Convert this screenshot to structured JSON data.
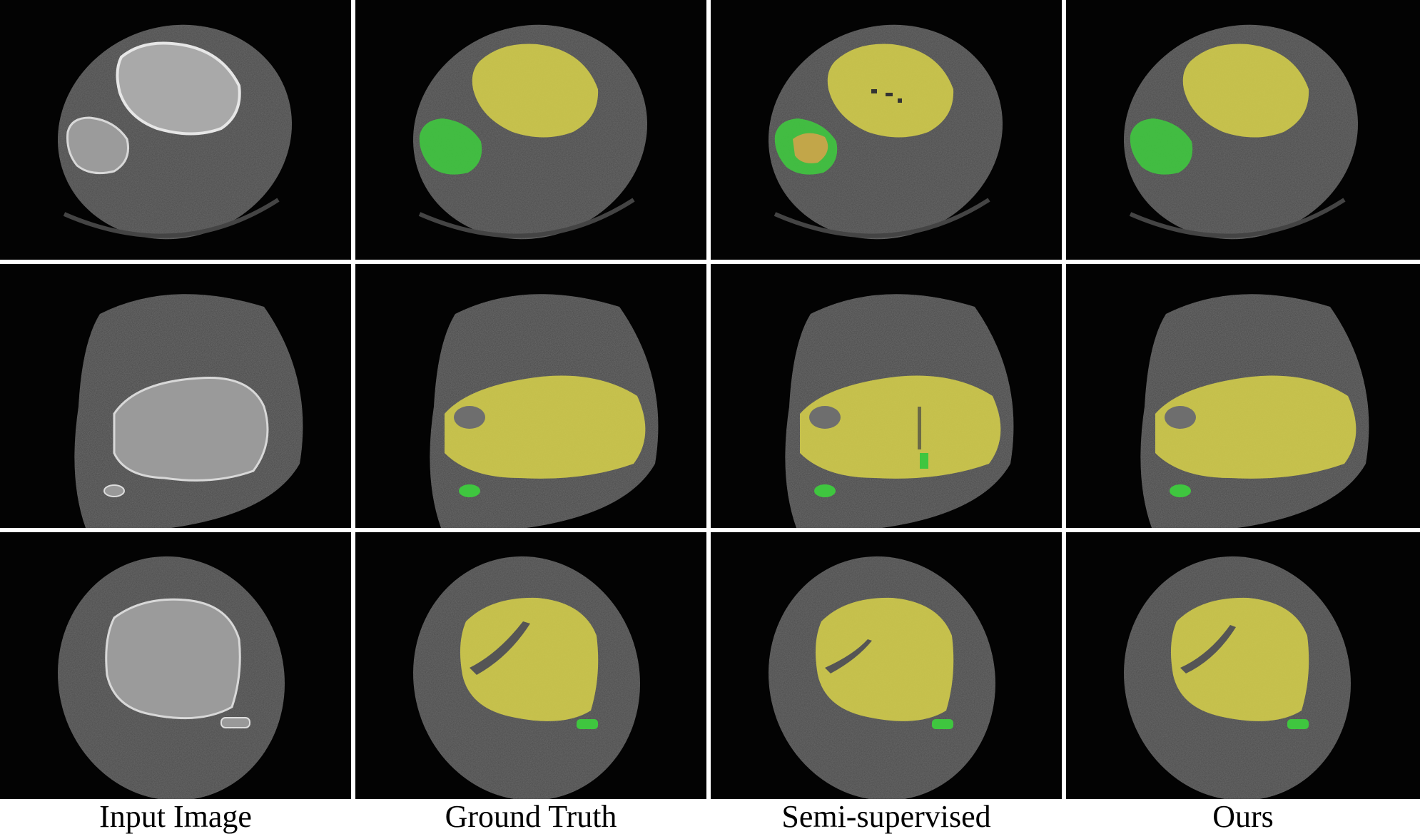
{
  "figure": {
    "columns": [
      {
        "label": "Input Image"
      },
      {
        "label": "Ground Truth"
      },
      {
        "label": "Semi-supervised"
      },
      {
        "label": "Ours"
      }
    ],
    "legend_colors": {
      "femur_class": "#d8d24a",
      "patella_class": "#3fc63f",
      "background": "#030303",
      "tissue": "#6f6f6f",
      "bone_cortex": "#dcdcdc"
    }
  }
}
